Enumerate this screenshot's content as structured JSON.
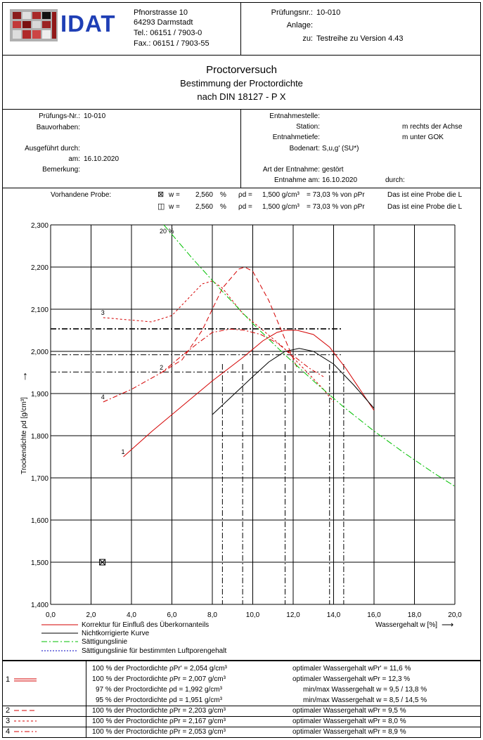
{
  "header": {
    "logo_text": "IDAT",
    "address": [
      "Pfnorstrasse 10",
      "64293 Darmstadt",
      "Tel.:  06151 / 7903-0",
      "Fax.: 06151 / 7903-55"
    ],
    "pruefungsnr_label": "Prüfungsnr.:",
    "pruefungsnr_value": "10-010",
    "anlage_label": "Anlage:",
    "zu_label": "zu:",
    "zu_value": "Testreihe zu Version 4.43"
  },
  "title": {
    "line1": "Proctorversuch",
    "line2": "Bestimmung der Proctordichte",
    "line3": "nach DIN 18127 - P X"
  },
  "info": {
    "left_labels": [
      "Prüfungs-Nr.:",
      "Bauvorhaben:",
      "Ausgeführt durch:",
      "am:",
      "Bemerkung:"
    ],
    "left_values": [
      "10-010",
      "",
      "",
      "16.10.2020",
      ""
    ],
    "right_labels": [
      "Entnahmestelle:",
      "Station:",
      "Entnahmetiefe:",
      "Bodenart:",
      "Art der Entnahme:",
      "Entnahme am:"
    ],
    "right_values": [
      "",
      "",
      "",
      "S,u,g'  (SU*)",
      "gestört",
      "16.10.2020"
    ],
    "unit_station": "m rechts der Achse",
    "unit_tiefe": "m unter GOK",
    "durch_label": "durch:"
  },
  "probe": {
    "label": "Vorhandene Probe:",
    "rows": [
      {
        "symbol": "⊠",
        "w_label": "w  =",
        "w": "2,560",
        "w_unit": "%",
        "rho_label": "ρd  =",
        "rho": "1,500 g/cm³",
        "pct": "=  73,03 % von ρPr",
        "note": "Das ist eine Probe die L"
      },
      {
        "symbol": "◫",
        "w_label": "w  =",
        "w": "2,560",
        "w_unit": "%",
        "rho_label": "ρd  =",
        "rho": "1,500 g/cm³",
        "pct": "=  73,03 % von ρPr",
        "note": "Das ist eine Probe die L"
      }
    ]
  },
  "chart_data": {
    "type": "line",
    "xlabel": "Wassergehalt w [%]",
    "ylabel": "Trockendichte ρd [g/cm³]",
    "x_ticks": [
      "0,0",
      "2,0",
      "4,0",
      "6,0",
      "8,0",
      "10,0",
      "12,0",
      "14,0",
      "16,0",
      "18,0",
      "20,0"
    ],
    "y_ticks": [
      "2,300",
      "2,200",
      "2,100",
      "2,000",
      "1,900",
      "1,800",
      "1,700",
      "1,600",
      "1,500",
      "1,400"
    ],
    "xlim": [
      0,
      20
    ],
    "ylim": [
      1.4,
      2.3
    ],
    "grid": true,
    "y_arrow": "↑",
    "x_arrow": "⟶",
    "series": [
      {
        "label_text": "1",
        "style": "correction",
        "x": [
          3.6,
          5,
          6.5,
          8,
          9.5,
          10.5,
          11.2,
          11.6,
          12.2,
          13,
          13.8,
          14.6,
          15.3,
          16
        ],
        "y": [
          1.75,
          1.81,
          1.87,
          1.93,
          1.985,
          2.025,
          2.045,
          2.05,
          2.05,
          2.04,
          2.01,
          1.96,
          1.91,
          1.86
        ]
      },
      {
        "label_text": "",
        "style": "uncorrected",
        "x": [
          8,
          9,
          10,
          10.8,
          11.6,
          12.3,
          13,
          14,
          15,
          16
        ],
        "y": [
          1.85,
          1.895,
          1.94,
          1.975,
          2.0,
          2.007,
          2.0,
          1.97,
          1.92,
          1.865
        ]
      },
      {
        "label_text": "2",
        "style": "dash_long",
        "x": [
          5.5,
          6.5,
          7.5,
          8.5,
          9.3,
          9.6,
          10,
          10.8,
          11.5,
          12.2
        ],
        "y": [
          1.95,
          1.98,
          2.05,
          2.15,
          2.195,
          2.2,
          2.19,
          2.12,
          2.04,
          1.96
        ]
      },
      {
        "label_text": "3",
        "style": "dash_short",
        "x": [
          2.6,
          3.8,
          5,
          6,
          6.8,
          7.5,
          8,
          8.5,
          9.5,
          10.5,
          11.5,
          12.5,
          13.5,
          14
        ],
        "y": [
          2.08,
          2.075,
          2.07,
          2.085,
          2.125,
          2.16,
          2.167,
          2.15,
          2.09,
          2.05,
          2.01,
          1.96,
          1.91,
          1.88
        ]
      },
      {
        "label_text": "4",
        "style": "dash_dot",
        "x": [
          2.6,
          4,
          5.5,
          6.5,
          7.3,
          8,
          8.9,
          9.6,
          10.4,
          11.2,
          12,
          12.8,
          13.5
        ],
        "y": [
          1.88,
          1.91,
          1.95,
          1.99,
          2.02,
          2.045,
          2.053,
          2.05,
          2.04,
          2.02,
          1.99,
          1.96,
          1.94
        ]
      },
      {
        "label_text": "20 %",
        "style": "saturation",
        "x": [
          5.6,
          7,
          8.5,
          10,
          11.5,
          13,
          14.5,
          16,
          17.5,
          19,
          20
        ],
        "y": [
          2.3,
          2.221,
          2.142,
          2.066,
          1.996,
          1.93,
          1.868,
          1.811,
          1.759,
          1.71,
          1.68
        ]
      }
    ],
    "sample_point": {
      "x": 2.56,
      "y": 1.5
    },
    "guides_h": [
      2.054,
      1.992,
      1.951,
      2.053
    ],
    "guides_v": [
      8.5,
      9.5,
      11.6,
      13.8,
      14.5
    ]
  },
  "legend": {
    "items": [
      {
        "style": "correction",
        "label": "Korrektur für Einfluß des Überkornanteils"
      },
      {
        "style": "uncorrected",
        "label": "Nichtkorrigierte Kurve"
      },
      {
        "style": "saturation",
        "label": "Sättigungslinie"
      },
      {
        "style": "dotted_blue",
        "label": "Sättigungslinie für bestimmten Luftporengehalt"
      }
    ]
  },
  "results": {
    "group1": {
      "num": "1",
      "rows": [
        {
          "left": "100 % der Proctordichte  ρPr'  =  2,054   g/cm³",
          "right": "optimaler Wassergehalt  wPr'  = 11,6 %"
        },
        {
          "left": "100 % der Proctordichte  ρPr  =  2,007   g/cm³",
          "right": "optimaler Wassergehalt  wPr  = 12,3 %"
        },
        {
          "left": "97 % der Proctordichte  ρd  =   1,992   g/cm³",
          "right": "min/max Wassergehalt  w   =  9,5 / 13,8  %"
        },
        {
          "left": "95 % der Proctordichte  ρd  =   1,951   g/cm³",
          "right": "min/max Wassergehalt  w   =  8,5 / 14,5  %"
        }
      ]
    },
    "others": [
      {
        "num": "2",
        "style": "dash_long",
        "left": "100 % der Proctordichte  ρPr  =  2,203   g/cm³",
        "right": "optimaler Wassergehalt  wPr  =  9,5 %"
      },
      {
        "num": "3",
        "style": "dash_short",
        "left": "100 % der Proctordichte  ρPr  =  2,167   g/cm³",
        "right": "optimaler Wassergehalt  wPr  =  8,0 %"
      },
      {
        "num": "4",
        "style": "dash_dot",
        "left": "100 % der Proctordichte  ρPr  =  2,053   g/cm³",
        "right": "optimaler Wassergehalt  wPr  =  8,9 %"
      }
    ]
  },
  "colors": {
    "red": "#d40000",
    "green": "#00c000",
    "blue": "#0000c0",
    "logo_blue": "#1f3fb5"
  }
}
